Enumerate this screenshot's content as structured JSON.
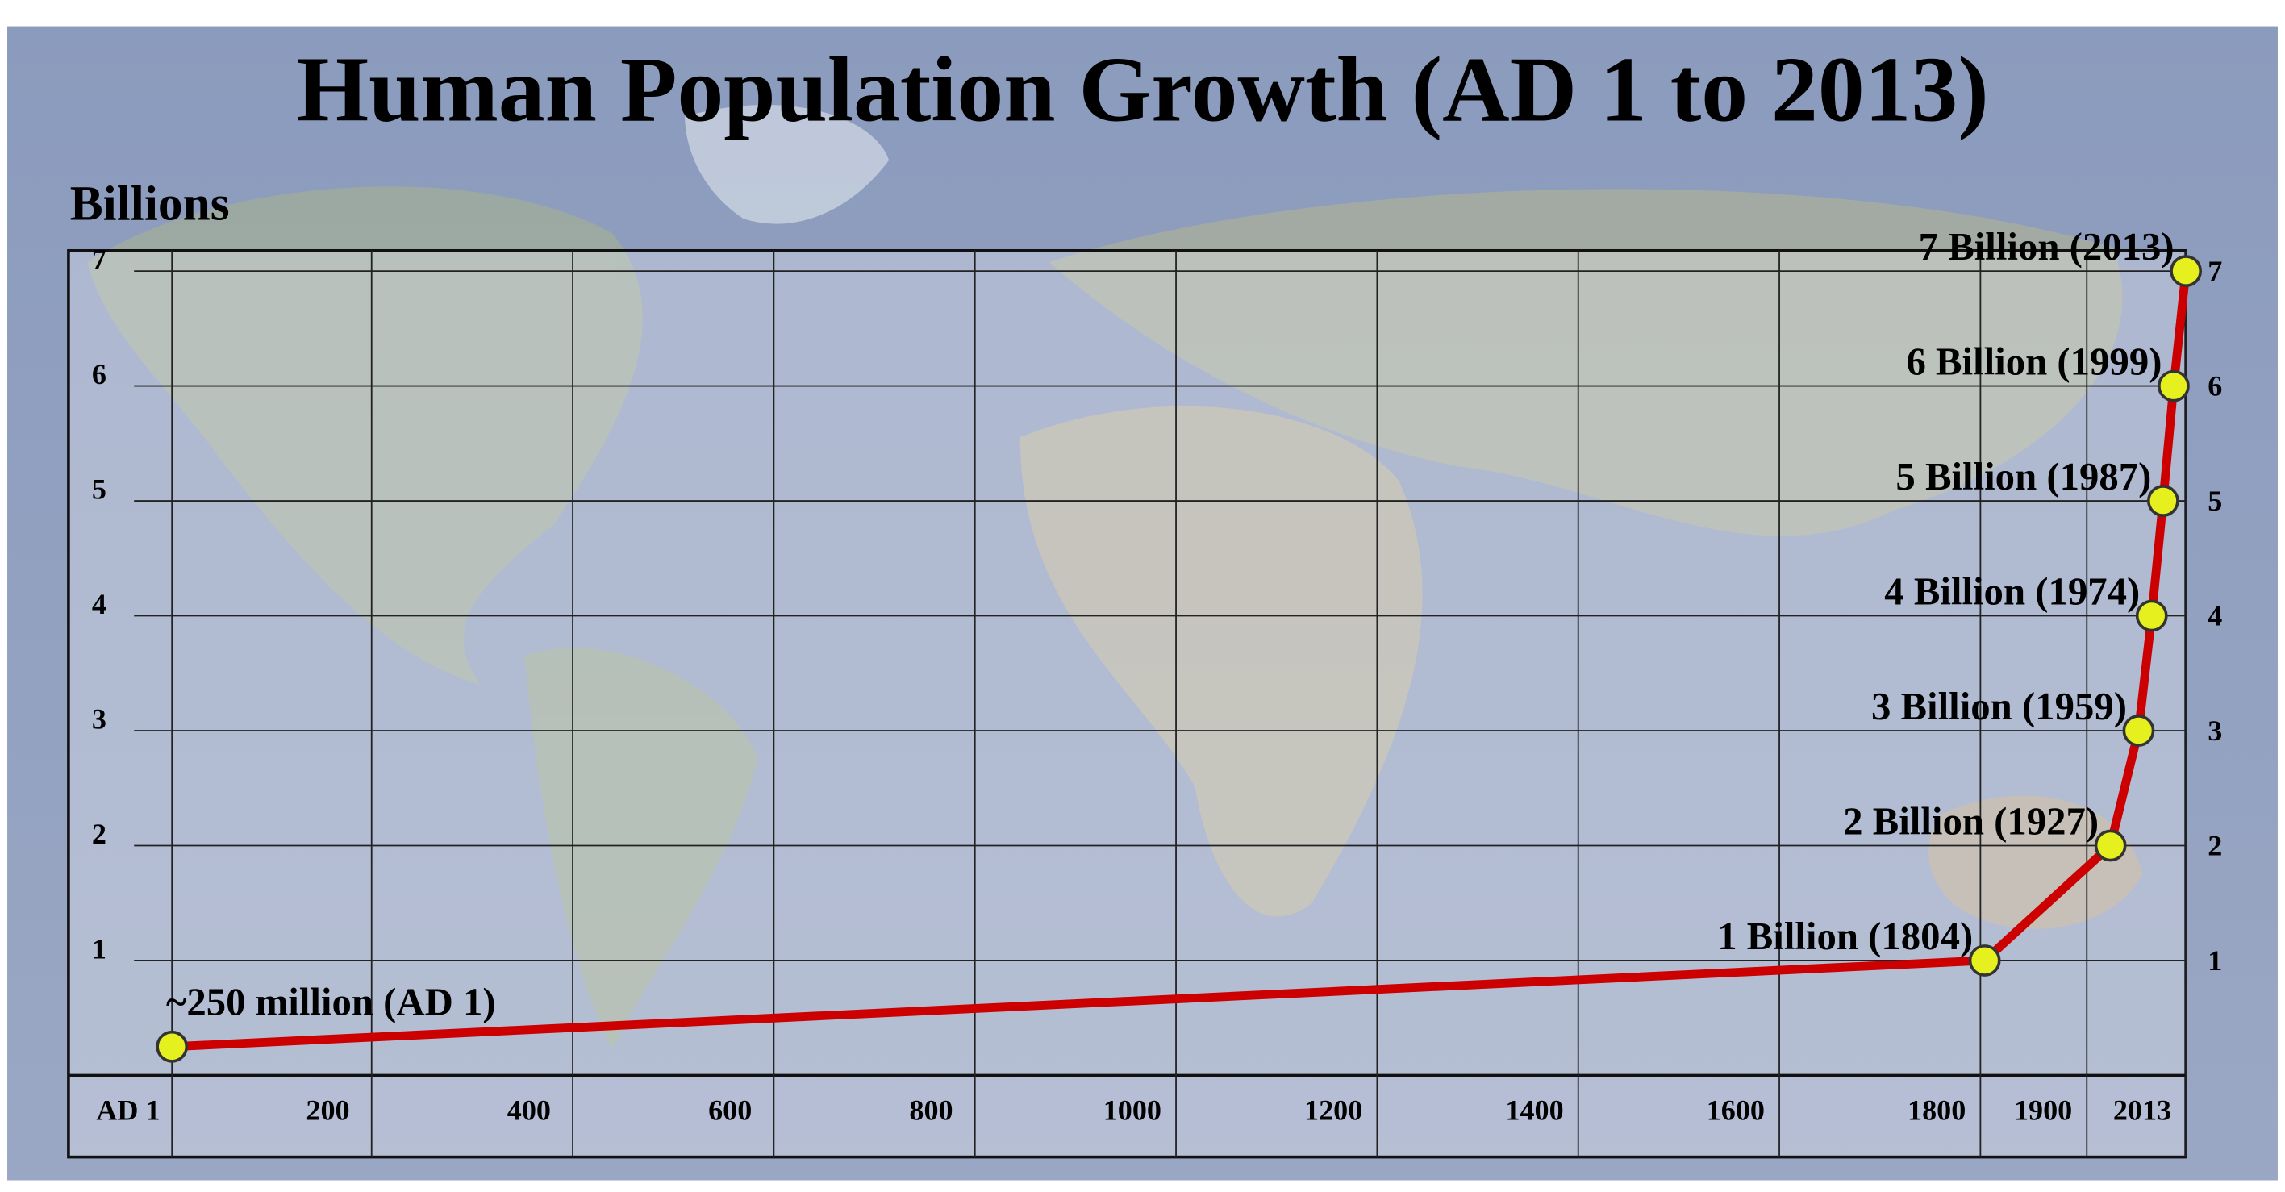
{
  "chart_data": {
    "type": "line",
    "title": "Human Population Growth (AD 1 to 2013)",
    "ylabel": "Billions",
    "x": [
      1,
      1804,
      1927,
      1959,
      1974,
      1987,
      1999,
      2013
    ],
    "values": [
      0.25,
      1,
      2,
      3,
      4,
      5,
      6,
      7
    ],
    "value_labels": [
      "~250 million (AD 1)",
      "1 Billion (1804)",
      "2 Billion (1927)",
      "3 Billion (1959)",
      "4 Billion (1974)",
      "5 Billion (1987)",
      "6 Billion (1999)",
      "7 Billion (2013)"
    ],
    "color": "#cc0000",
    "marker_color": "#e6f01e",
    "xlim": [
      1,
      2013
    ],
    "xticks": [
      {
        "value": 1,
        "label": "AD 1"
      },
      200,
      400,
      600,
      800,
      1000,
      1200,
      1400,
      1600,
      1800,
      1900,
      2013
    ],
    "ylim": [
      0,
      7
    ],
    "yticks": [
      1,
      2,
      3,
      4,
      5,
      6,
      7
    ],
    "grid": true
  }
}
